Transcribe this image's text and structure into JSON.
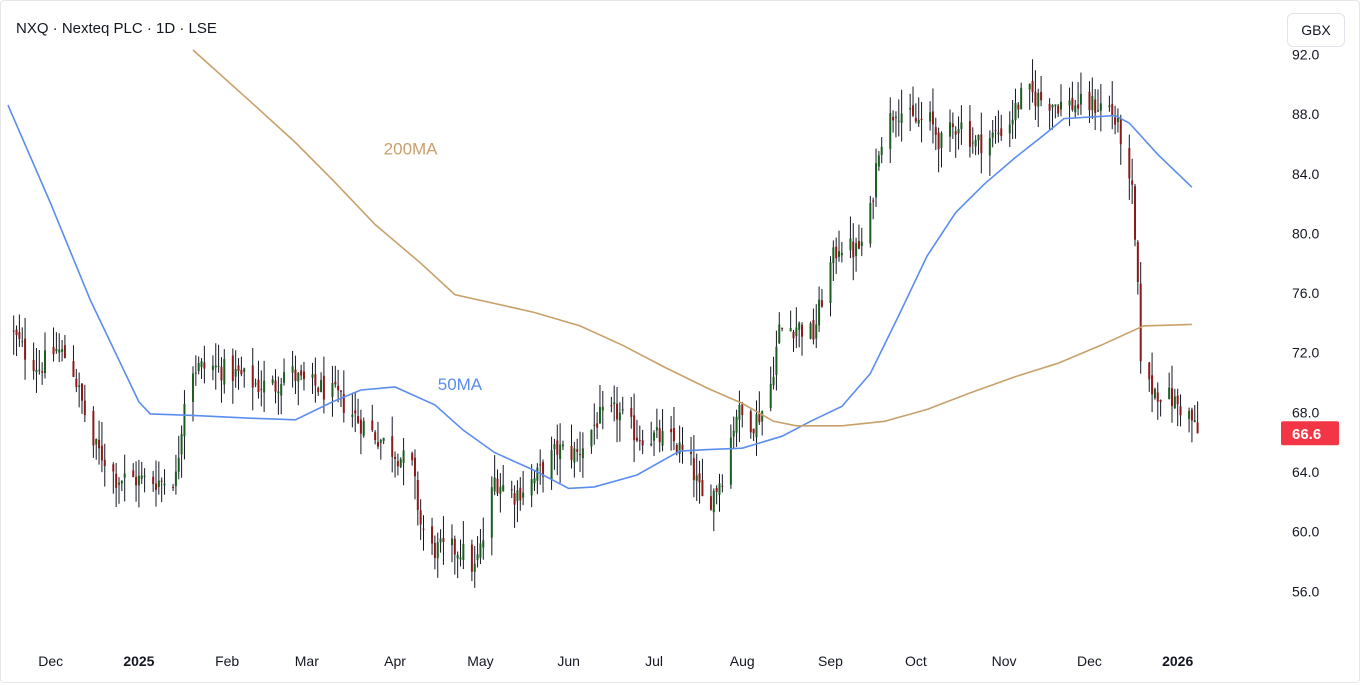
{
  "header": {
    "title": "NXQ · Nexteq PLC · 1D · LSE",
    "currency": "GBX"
  },
  "colors": {
    "up": "#1b5e20",
    "down": "#8b1a1a",
    "wick": "#131722",
    "ma50": "#5b8def",
    "ma200": "#c8a06a",
    "last_badge": "#f23645"
  },
  "chart_data": {
    "type": "candlestick",
    "title": "NXQ · Nexteq PLC · 1D · LSE",
    "currency": "GBX",
    "x_range": [
      "2024-11-16",
      "2026-01-12"
    ],
    "ylim": [
      52.4,
      92.3
    ],
    "y_ticks": [
      56.0,
      60.0,
      64.0,
      68.0,
      72.0,
      76.0,
      80.0,
      84.0,
      88.0,
      92.0
    ],
    "x_ticks": [
      {
        "label": "Dec",
        "date": "2024-12-01"
      },
      {
        "label": "2025",
        "date": "2025-01-01"
      },
      {
        "label": "Feb",
        "date": "2025-02-01"
      },
      {
        "label": "Mar",
        "date": "2025-03-01"
      },
      {
        "label": "Apr",
        "date": "2025-04-01"
      },
      {
        "label": "May",
        "date": "2025-05-01"
      },
      {
        "label": "Jun",
        "date": "2025-06-01"
      },
      {
        "label": "Jul",
        "date": "2025-07-01"
      },
      {
        "label": "Aug",
        "date": "2025-08-01"
      },
      {
        "label": "Sep",
        "date": "2025-09-01"
      },
      {
        "label": "Oct",
        "date": "2025-10-01"
      },
      {
        "label": "Nov",
        "date": "2025-11-01"
      },
      {
        "label": "Dec",
        "date": "2025-12-01"
      },
      {
        "label": "2026",
        "date": "2026-01-01"
      }
    ],
    "last_price": 66.6,
    "annotations": [
      {
        "text": "200MA",
        "date": "2025-03-28",
        "value": 85.3
      },
      {
        "text": "50MA",
        "date": "2025-04-16",
        "value": 69.5
      }
    ],
    "moving_averages": [
      {
        "name": "50MA",
        "points": [
          [
            "2024-11-16",
            88.6
          ],
          [
            "2024-12-01",
            82.0
          ],
          [
            "2024-12-15",
            75.5
          ],
          [
            "2025-01-01",
            68.7
          ],
          [
            "2025-01-05",
            67.9
          ],
          [
            "2025-01-20",
            67.8
          ],
          [
            "2025-02-10",
            67.6
          ],
          [
            "2025-02-25",
            67.5
          ],
          [
            "2025-03-10",
            68.7
          ],
          [
            "2025-03-20",
            69.5
          ],
          [
            "2025-04-01",
            69.7
          ],
          [
            "2025-04-15",
            68.5
          ],
          [
            "2025-04-25",
            66.8
          ],
          [
            "2025-05-06",
            65.3
          ],
          [
            "2025-05-20",
            64.1
          ],
          [
            "2025-06-01",
            62.9
          ],
          [
            "2025-06-10",
            63.0
          ],
          [
            "2025-06-25",
            63.8
          ],
          [
            "2025-07-10",
            65.4
          ],
          [
            "2025-07-20",
            65.5
          ],
          [
            "2025-08-01",
            65.6
          ],
          [
            "2025-08-15",
            66.4
          ],
          [
            "2025-08-25",
            67.4
          ],
          [
            "2025-09-05",
            68.4
          ],
          [
            "2025-09-15",
            70.6
          ],
          [
            "2025-09-25",
            74.5
          ],
          [
            "2025-10-05",
            78.5
          ],
          [
            "2025-10-15",
            81.4
          ],
          [
            "2025-10-25",
            83.3
          ],
          [
            "2025-11-05",
            85.1
          ],
          [
            "2025-11-15",
            86.6
          ],
          [
            "2025-11-22",
            87.7
          ],
          [
            "2025-12-01",
            87.8
          ],
          [
            "2025-12-10",
            87.9
          ],
          [
            "2025-12-15",
            87.4
          ],
          [
            "2025-12-25",
            85.3
          ],
          [
            "2026-01-06",
            83.1
          ]
        ]
      },
      {
        "name": "200MA",
        "points": [
          [
            "2025-01-20",
            92.3
          ],
          [
            "2025-02-10",
            88.7
          ],
          [
            "2025-02-25",
            86.1
          ],
          [
            "2025-03-10",
            83.6
          ],
          [
            "2025-03-25",
            80.6
          ],
          [
            "2025-04-10",
            78.0
          ],
          [
            "2025-04-22",
            75.9
          ],
          [
            "2025-05-06",
            75.3
          ],
          [
            "2025-05-20",
            74.7
          ],
          [
            "2025-06-05",
            73.8
          ],
          [
            "2025-06-20",
            72.5
          ],
          [
            "2025-07-05",
            71.0
          ],
          [
            "2025-07-20",
            69.6
          ],
          [
            "2025-08-01",
            68.6
          ],
          [
            "2025-08-12",
            67.4
          ],
          [
            "2025-08-20",
            67.1
          ],
          [
            "2025-09-05",
            67.1
          ],
          [
            "2025-09-20",
            67.4
          ],
          [
            "2025-10-05",
            68.2
          ],
          [
            "2025-10-20",
            69.3
          ],
          [
            "2025-11-05",
            70.4
          ],
          [
            "2025-11-20",
            71.3
          ],
          [
            "2025-12-05",
            72.5
          ],
          [
            "2025-12-20",
            73.8
          ],
          [
            "2026-01-06",
            73.9
          ]
        ]
      }
    ],
    "ohlc_anchors": [
      [
        "2024-11-18",
        73.2
      ],
      [
        "2024-11-22",
        72.0
      ],
      [
        "2024-11-27",
        71.0
      ],
      [
        "2024-12-03",
        72.2
      ],
      [
        "2024-12-08",
        71.5
      ],
      [
        "2024-12-12",
        68.6
      ],
      [
        "2024-12-16",
        65.8
      ],
      [
        "2024-12-20",
        64.9
      ],
      [
        "2024-12-24",
        63.6
      ],
      [
        "2024-12-31",
        63.5
      ],
      [
        "2025-01-08",
        63.4
      ],
      [
        "2025-01-14",
        63.6
      ],
      [
        "2025-01-17",
        69.0
      ],
      [
        "2025-01-20",
        71.0
      ],
      [
        "2025-01-28",
        71.0
      ],
      [
        "2025-02-05",
        70.5
      ],
      [
        "2025-02-12",
        69.8
      ],
      [
        "2025-02-18",
        69.8
      ],
      [
        "2025-02-22",
        71.0
      ],
      [
        "2025-02-27",
        70.0
      ],
      [
        "2025-03-05",
        69.7
      ],
      [
        "2025-03-12",
        69.0
      ],
      [
        "2025-03-19",
        67.5
      ],
      [
        "2025-03-25",
        66.5
      ],
      [
        "2025-03-31",
        65.5
      ],
      [
        "2025-04-07",
        64.3
      ],
      [
        "2025-04-10",
        60.5
      ],
      [
        "2025-04-14",
        58.8
      ],
      [
        "2025-04-24",
        58.8
      ],
      [
        "2025-04-29",
        57.5
      ],
      [
        "2025-05-02",
        59.5
      ],
      [
        "2025-05-06",
        63.5
      ],
      [
        "2025-05-13",
        62.5
      ],
      [
        "2025-05-20",
        63.5
      ],
      [
        "2025-05-28",
        65.5
      ],
      [
        "2025-06-04",
        65.2
      ],
      [
        "2025-06-11",
        67.5
      ],
      [
        "2025-06-18",
        68.0
      ],
      [
        "2025-06-25",
        66.5
      ],
      [
        "2025-07-02",
        66.3
      ],
      [
        "2025-07-08",
        66.0
      ],
      [
        "2025-07-14",
        64.5
      ],
      [
        "2025-07-19",
        61.5
      ],
      [
        "2025-07-25",
        63.8
      ],
      [
        "2025-07-30",
        68.0
      ],
      [
        "2025-08-05",
        67.3
      ],
      [
        "2025-08-10",
        68.7
      ],
      [
        "2025-08-14",
        73.5
      ],
      [
        "2025-08-20",
        73.8
      ],
      [
        "2025-08-26",
        73.2
      ],
      [
        "2025-08-31",
        77.3
      ],
      [
        "2025-09-04",
        79.3
      ],
      [
        "2025-09-10",
        78.8
      ],
      [
        "2025-09-14",
        79.8
      ],
      [
        "2025-09-18",
        86.0
      ],
      [
        "2025-09-24",
        88.5
      ],
      [
        "2025-09-30",
        87.5
      ],
      [
        "2025-10-06",
        87.5
      ],
      [
        "2025-10-10",
        86.0
      ],
      [
        "2025-10-16",
        87.5
      ],
      [
        "2025-10-22",
        86.0
      ],
      [
        "2025-10-28",
        86.5
      ],
      [
        "2025-11-03",
        87.5
      ],
      [
        "2025-11-08",
        89.5
      ],
      [
        "2025-11-14",
        89.0
      ],
      [
        "2025-11-20",
        88.7
      ],
      [
        "2025-11-27",
        88.6
      ],
      [
        "2025-12-03",
        88.6
      ],
      [
        "2025-12-08",
        88.5
      ],
      [
        "2025-12-12",
        86.5
      ],
      [
        "2025-12-15",
        83.0
      ],
      [
        "2025-12-16",
        82.6
      ],
      [
        "2025-12-18",
        76.0
      ],
      [
        "2025-12-19",
        72.0
      ],
      [
        "2025-12-22",
        69.7
      ],
      [
        "2025-12-29",
        69.0
      ],
      [
        "2026-01-05",
        67.8
      ],
      [
        "2026-01-08",
        66.6
      ]
    ]
  }
}
